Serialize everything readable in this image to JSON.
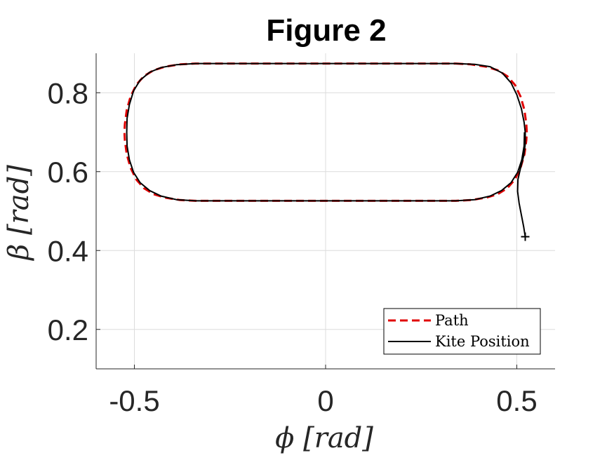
{
  "chart_data": {
    "type": "line",
    "title": "Figure 2",
    "xlabel": "ϕ [rad]",
    "ylabel": "β [rad]",
    "xlim": [
      -0.6,
      0.6
    ],
    "ylim": [
      0.1,
      0.9
    ],
    "xticks": [
      -0.5,
      0,
      0.5
    ],
    "xtick_labels": [
      "-0.5",
      "0",
      "0.5"
    ],
    "yticks": [
      0.2,
      0.4,
      0.6,
      0.8
    ],
    "ytick_labels": [
      "0.2",
      "0.4",
      "0.6",
      "0.8"
    ],
    "grid": true,
    "legend_position": "bottom-right",
    "series": [
      {
        "name": "Path",
        "style": "dashed",
        "color": "#e00000",
        "points": [
          [
            0.34,
            0.874
          ],
          [
            0.38,
            0.872
          ],
          [
            0.42,
            0.866
          ],
          [
            0.45,
            0.857
          ],
          [
            0.475,
            0.842
          ],
          [
            0.495,
            0.82
          ],
          [
            0.51,
            0.79
          ],
          [
            0.52,
            0.756
          ],
          [
            0.525,
            0.72
          ],
          [
            0.526,
            0.7
          ],
          [
            0.525,
            0.68
          ],
          [
            0.52,
            0.644
          ],
          [
            0.51,
            0.61
          ],
          [
            0.495,
            0.58
          ],
          [
            0.475,
            0.558
          ],
          [
            0.45,
            0.543
          ],
          [
            0.42,
            0.534
          ],
          [
            0.38,
            0.528
          ],
          [
            0.34,
            0.526
          ],
          [
            -0.34,
            0.526
          ],
          [
            -0.38,
            0.528
          ],
          [
            -0.42,
            0.534
          ],
          [
            -0.45,
            0.543
          ],
          [
            -0.475,
            0.558
          ],
          [
            -0.495,
            0.58
          ],
          [
            -0.51,
            0.61
          ],
          [
            -0.52,
            0.644
          ],
          [
            -0.525,
            0.68
          ],
          [
            -0.526,
            0.7
          ],
          [
            -0.525,
            0.72
          ],
          [
            -0.52,
            0.756
          ],
          [
            -0.51,
            0.79
          ],
          [
            -0.495,
            0.82
          ],
          [
            -0.475,
            0.842
          ],
          [
            -0.45,
            0.857
          ],
          [
            -0.42,
            0.866
          ],
          [
            -0.38,
            0.872
          ],
          [
            -0.34,
            0.874
          ],
          [
            0.34,
            0.874
          ]
        ]
      },
      {
        "name": "Kite Position",
        "style": "solid",
        "color": "#000000",
        "points": [
          [
            0.522,
            0.435
          ],
          [
            0.518,
            0.46
          ],
          [
            0.512,
            0.49
          ],
          [
            0.506,
            0.52
          ],
          [
            0.502,
            0.55
          ],
          [
            0.503,
            0.58
          ],
          [
            0.51,
            0.61
          ],
          [
            0.518,
            0.64
          ],
          [
            0.522,
            0.67
          ],
          [
            0.522,
            0.7
          ],
          [
            0.519,
            0.725
          ],
          [
            0.512,
            0.76
          ],
          [
            0.5,
            0.795
          ],
          [
            0.485,
            0.825
          ],
          [
            0.462,
            0.85
          ],
          [
            0.43,
            0.866
          ],
          [
            0.39,
            0.872
          ],
          [
            0.34,
            0.874
          ],
          [
            -0.34,
            0.874
          ],
          [
            -0.39,
            0.871
          ],
          [
            -0.43,
            0.864
          ],
          [
            -0.46,
            0.852
          ],
          [
            -0.485,
            0.832
          ],
          [
            -0.502,
            0.805
          ],
          [
            -0.513,
            0.77
          ],
          [
            -0.519,
            0.735
          ],
          [
            -0.52,
            0.7
          ],
          [
            -0.519,
            0.665
          ],
          [
            -0.513,
            0.63
          ],
          [
            -0.502,
            0.598
          ],
          [
            -0.485,
            0.572
          ],
          [
            -0.46,
            0.552
          ],
          [
            -0.43,
            0.538
          ],
          [
            -0.39,
            0.529
          ],
          [
            -0.34,
            0.526
          ],
          [
            0.34,
            0.526
          ],
          [
            0.39,
            0.529
          ],
          [
            0.43,
            0.538
          ],
          [
            0.46,
            0.552
          ],
          [
            0.485,
            0.572
          ],
          [
            0.502,
            0.598
          ],
          [
            0.513,
            0.63
          ],
          [
            0.519,
            0.665
          ],
          [
            0.52,
            0.7
          ]
        ]
      }
    ],
    "marker": {
      "symbol": "+",
      "x": 0.522,
      "y": 0.435,
      "color": "#000000"
    }
  }
}
